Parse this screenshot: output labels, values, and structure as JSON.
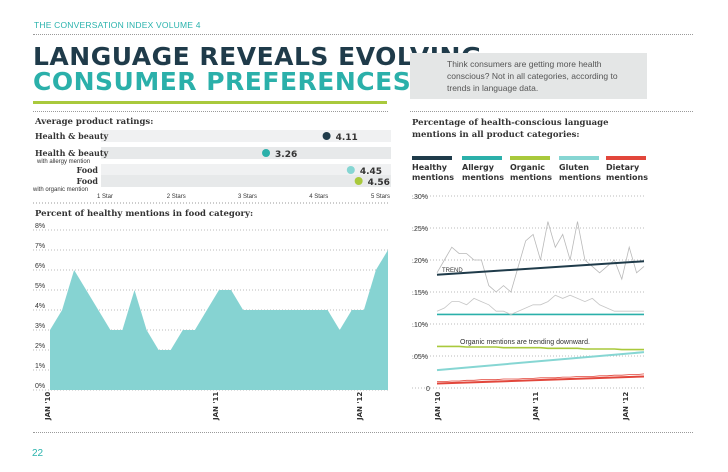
{
  "header": {
    "running_head": "THE CONVERSATION INDEX VOLUME 4"
  },
  "title": {
    "line1": "LANGUAGE REVEALS EVOLVING",
    "line2": "CONSUMER PREFERENCES"
  },
  "intro": {
    "text": "Think consumers are getting more health conscious? Not in all categories, according to trends in language data."
  },
  "page_number": "22",
  "colors": {
    "teal": "#2bb0aa",
    "navy": "#1f3b4a",
    "green": "#a9c93c",
    "light_teal": "#86d6d3",
    "red": "#e2463b",
    "area_fill": "#86d3d2"
  },
  "chart_data": [
    {
      "type": "dot",
      "title": "Average product ratings:",
      "xlim": [
        1,
        5
      ],
      "ticks": [
        "1 Star",
        "2 Stars",
        "3 Stars",
        "4 Stars",
        "5 Stars"
      ],
      "rows": [
        {
          "label": "Health & beauty",
          "sublabel": "",
          "value": 4.11,
          "value_label": "4.11",
          "color": "#1f3b4a"
        },
        {
          "label": "Health & beauty",
          "sublabel": "with allergy mention",
          "value": 3.26,
          "value_label": "3.26",
          "color": "#2bb0aa"
        },
        {
          "label": "Food",
          "sublabel": "",
          "value": 4.45,
          "value_label": "4.45",
          "color": "#86d6d3"
        },
        {
          "label": "Food",
          "sublabel": "with organic mention",
          "value": 4.56,
          "value_label": "4.56",
          "color": "#a9c93c"
        }
      ]
    },
    {
      "type": "area",
      "title": "Percent of healthy mentions in food category:",
      "ylim": [
        0,
        8
      ],
      "yticks": [
        "0%",
        "1%",
        "2%",
        "3%",
        "4%",
        "5%",
        "6%",
        "7%",
        "8%"
      ],
      "xticks": [
        "JAN '10",
        "JAN '11",
        "JAN '12"
      ],
      "values": [
        3,
        4,
        6,
        5,
        4,
        3,
        3,
        5,
        3,
        2,
        2,
        3,
        3,
        4,
        5,
        5,
        4,
        4,
        4,
        4,
        4,
        4,
        4,
        4,
        3,
        4,
        4,
        6,
        7
      ]
    },
    {
      "type": "line",
      "title": "Percentage of health-conscious language mentions in all product categories:",
      "ylim": [
        0,
        0.3
      ],
      "yticks": [
        "0",
        ".05%",
        ".10%",
        ".15%",
        ".20%",
        ".25%",
        ".30%"
      ],
      "xticks": [
        "JAN '10",
        "JAN '11",
        "JAN '12"
      ],
      "legend": [
        "Healthy mentions",
        "Allergy mentions",
        "Organic mentions",
        "Gluten mentions",
        "Dietary mentions"
      ],
      "annotations": [
        "TREND",
        "Organic mentions are trending downward."
      ],
      "series": [
        {
          "name": "Healthy mentions",
          "color": "#1f3b4a",
          "values": [
            0.18,
            0.2,
            0.22,
            0.21,
            0.21,
            0.2,
            0.2,
            0.16,
            0.15,
            0.16,
            0.15,
            0.19,
            0.23,
            0.24,
            0.2,
            0.26,
            0.22,
            0.24,
            0.2,
            0.26,
            0.2,
            0.19,
            0.18,
            0.19,
            0.2,
            0.17,
            0.22,
            0.18,
            0.19
          ],
          "trend": [
            0.177,
            0.198
          ]
        },
        {
          "name": "Allergy mentions",
          "color": "#2bb0aa",
          "values": [
            0.115,
            0.115,
            0.115,
            0.115,
            0.115,
            0.115,
            0.115,
            0.115,
            0.115,
            0.115,
            0.115,
            0.115,
            0.115,
            0.115,
            0.115,
            0.115,
            0.115,
            0.115,
            0.115,
            0.115,
            0.115,
            0.115,
            0.115,
            0.115,
            0.115,
            0.115,
            0.115,
            0.115,
            0.115
          ]
        },
        {
          "name": "Organic mentions",
          "color": "#a9c93c",
          "values": [
            0.065,
            0.065,
            0.065,
            0.065,
            0.064,
            0.064,
            0.064,
            0.064,
            0.064,
            0.063,
            0.063,
            0.063,
            0.063,
            0.063,
            0.063,
            0.062,
            0.062,
            0.062,
            0.062,
            0.062,
            0.061,
            0.061,
            0.061,
            0.061,
            0.061,
            0.06,
            0.06,
            0.06,
            0.06
          ]
        },
        {
          "name": "Gluten mentions",
          "color": "#86d6d3",
          "values": [
            0.12,
            0.125,
            0.135,
            0.135,
            0.13,
            0.14,
            0.135,
            0.13,
            0.12,
            0.12,
            0.115,
            0.12,
            0.125,
            0.13,
            0.13,
            0.135,
            0.145,
            0.14,
            0.145,
            0.14,
            0.135,
            0.14,
            0.13,
            0.125,
            0.12,
            0.12,
            0.12,
            0.12,
            0.12
          ],
          "trend": [
            0.028,
            0.056
          ]
        },
        {
          "name": "Dietary mentions",
          "color": "#e2463b",
          "values": [
            0.01,
            0.01,
            0.011,
            0.011,
            0.012,
            0.012,
            0.013,
            0.013,
            0.013,
            0.014,
            0.014,
            0.014,
            0.015,
            0.015,
            0.016,
            0.016,
            0.016,
            0.017,
            0.017,
            0.018,
            0.018,
            0.018,
            0.019,
            0.019,
            0.02,
            0.02,
            0.021,
            0.021,
            0.022
          ],
          "trend": [
            0.007,
            0.018
          ]
        }
      ]
    }
  ]
}
